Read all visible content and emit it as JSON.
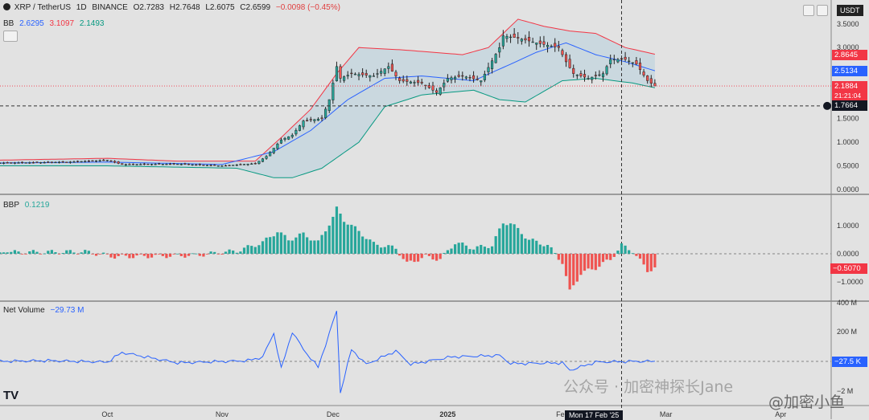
{
  "header": {
    "symbol": "XRP / TetherUS",
    "interval": "1D",
    "exchange": "BINANCE",
    "open": "O2.7283",
    "high": "H2.7648",
    "low": "L2.6075",
    "close": "C2.6599",
    "change": "−0.0098 (−0.45%)",
    "bb_label": "BB",
    "bb_basis": "2.6295",
    "bb_upper": "3.1097",
    "bb_lower": "2.1493",
    "currency": "USDT"
  },
  "price_axis": {
    "ticks": [
      "3.5000",
      "3.0000",
      "2.5000",
      "2.0000",
      "1.5000",
      "1.0000",
      "0.5000",
      "0.0000"
    ]
  },
  "price_tags": {
    "upper": "2.8645",
    "basis": "2.5134",
    "last": "2.1884",
    "countdown": "21:21:04",
    "cursor": "1.7664"
  },
  "bbp": {
    "label": "BBP",
    "value": "0.1219",
    "ticks": [
      "1.0000",
      "0.0000",
      "−1.0000"
    ],
    "tag": "−0.5070"
  },
  "net_volume": {
    "label": "Net Volume",
    "value": "−29.73 M",
    "ticks": [
      "400 M",
      "200 M",
      "−2 M"
    ],
    "tag": "−27.5 K"
  },
  "time_axis": {
    "labels": [
      "Oct",
      "Nov",
      "Dec",
      "2025",
      "Feb",
      "Mar",
      "Apr"
    ],
    "cursor": "Mon 17 Feb '25"
  },
  "watermarks": {
    "wechat": "公众号 · 加密神探长Jane",
    "brand": "@加密小鱼"
  },
  "colors": {
    "up": "#26a69a",
    "down": "#ef5350",
    "bb_upper": "#f23645",
    "bb_basis": "#2962ff",
    "bb_lower": "#089981",
    "volume": "#2962ff"
  },
  "chart_data": {
    "type": "candlestick",
    "panes": [
      {
        "name": "price",
        "ylim": [
          0,
          3.7
        ],
        "x_range": [
          "2024-09-02",
          "2025-04-14"
        ],
        "price_path": [
          [
            "2024-09-01",
            0.56
          ],
          [
            "2024-09-20",
            0.58
          ],
          [
            "2024-10-01",
            0.62
          ],
          [
            "2024-10-05",
            0.53
          ],
          [
            "2024-10-20",
            0.54
          ],
          [
            "2024-11-01",
            0.5
          ],
          [
            "2024-11-10",
            0.55
          ],
          [
            "2024-11-13",
            0.7
          ],
          [
            "2024-11-17",
            1.05
          ],
          [
            "2024-11-20",
            1.15
          ],
          [
            "2024-11-23",
            1.45
          ],
          [
            "2024-11-28",
            1.5
          ],
          [
            "2024-11-30",
            1.9
          ],
          [
            "2024-12-02",
            2.6
          ],
          [
            "2024-12-03",
            2.35
          ],
          [
            "2024-12-06",
            2.45
          ],
          [
            "2024-12-12",
            2.4
          ],
          [
            "2024-12-16",
            2.6
          ],
          [
            "2024-12-19",
            2.3
          ],
          [
            "2024-12-25",
            2.25
          ],
          [
            "2024-12-29",
            2.05
          ],
          [
            "2025-01-01",
            2.35
          ],
          [
            "2025-01-05",
            2.4
          ],
          [
            "2025-01-10",
            2.3
          ],
          [
            "2025-01-15",
            3.0
          ],
          [
            "2025-01-16",
            3.25
          ],
          [
            "2025-01-20",
            3.2
          ],
          [
            "2025-01-25",
            3.1
          ],
          [
            "2025-01-31",
            3.0
          ],
          [
            "2025-02-02",
            2.7
          ],
          [
            "2025-02-04",
            2.45
          ],
          [
            "2025-02-08",
            2.35
          ],
          [
            "2025-02-12",
            2.45
          ],
          [
            "2025-02-14",
            2.75
          ],
          [
            "2025-02-18",
            2.75
          ],
          [
            "2025-02-21",
            2.65
          ],
          [
            "2025-02-24",
            2.3
          ],
          [
            "2025-02-26",
            2.19
          ]
        ],
        "bb_upper": [
          [
            "2024-09-01",
            0.62
          ],
          [
            "2024-10-01",
            0.66
          ],
          [
            "2024-10-20",
            0.6
          ],
          [
            "2024-11-10",
            0.6
          ],
          [
            "2024-11-17",
            1.1
          ],
          [
            "2024-11-25",
            1.7
          ],
          [
            "2024-12-02",
            2.45
          ],
          [
            "2024-12-08",
            3.0
          ],
          [
            "2024-12-20",
            2.95
          ],
          [
            "2024-12-28",
            2.9
          ],
          [
            "2025-01-05",
            2.85
          ],
          [
            "2025-01-12",
            3.0
          ],
          [
            "2025-01-20",
            3.6
          ],
          [
            "2025-01-27",
            3.45
          ],
          [
            "2025-02-03",
            3.35
          ],
          [
            "2025-02-10",
            3.3
          ],
          [
            "2025-02-18",
            3.0
          ],
          [
            "2025-02-26",
            2.86
          ]
        ],
        "bb_basis": [
          [
            "2024-09-01",
            0.56
          ],
          [
            "2024-10-01",
            0.58
          ],
          [
            "2024-11-01",
            0.53
          ],
          [
            "2024-11-15",
            0.8
          ],
          [
            "2024-11-25",
            1.25
          ],
          [
            "2024-12-05",
            1.9
          ],
          [
            "2024-12-15",
            2.35
          ],
          [
            "2024-12-25",
            2.4
          ],
          [
            "2025-01-08",
            2.3
          ],
          [
            "2025-01-18",
            2.65
          ],
          [
            "2025-01-25",
            2.9
          ],
          [
            "2025-02-02",
            3.1
          ],
          [
            "2025-02-10",
            2.85
          ],
          [
            "2025-02-18",
            2.7
          ],
          [
            "2025-02-26",
            2.51
          ]
        ],
        "bb_lower": [
          [
            "2024-09-01",
            0.5
          ],
          [
            "2024-10-01",
            0.5
          ],
          [
            "2024-11-05",
            0.45
          ],
          [
            "2024-11-15",
            0.25
          ],
          [
            "2024-11-20",
            0.25
          ],
          [
            "2024-11-28",
            0.45
          ],
          [
            "2024-12-08",
            1.0
          ],
          [
            "2024-12-15",
            1.75
          ],
          [
            "2024-12-25",
            2.0
          ],
          [
            "2025-01-08",
            2.1
          ],
          [
            "2025-01-15",
            1.9
          ],
          [
            "2025-01-22",
            1.85
          ],
          [
            "2025-02-01",
            2.3
          ],
          [
            "2025-02-10",
            2.35
          ],
          [
            "2025-02-20",
            2.25
          ],
          [
            "2025-02-26",
            2.15
          ]
        ],
        "last": 2.1884,
        "cursor_price": 1.7664
      },
      {
        "name": "BBP",
        "ylim": [
          -1.5,
          1.6
        ],
        "bars": [
          [
            "2024-09-05",
            0.05
          ],
          [
            "2024-09-15",
            0.06
          ],
          [
            "2024-09-25",
            0.07
          ],
          [
            "2024-10-03",
            -0.1
          ],
          [
            "2024-10-15",
            -0.08
          ],
          [
            "2024-10-25",
            -0.05
          ],
          [
            "2024-11-05",
            0.1
          ],
          [
            "2024-11-12",
            0.4
          ],
          [
            "2024-11-16",
            0.8
          ],
          [
            "2024-11-19",
            0.5
          ],
          [
            "2024-11-23",
            0.7
          ],
          [
            "2024-11-27",
            0.4
          ],
          [
            "2024-12-01",
            1.3
          ],
          [
            "2024-12-02",
            1.6
          ],
          [
            "2024-12-04",
            1.2
          ],
          [
            "2024-12-08",
            0.8
          ],
          [
            "2024-12-12",
            0.35
          ],
          [
            "2024-12-18",
            0.2
          ],
          [
            "2024-12-21",
            -0.35
          ],
          [
            "2024-12-26",
            -0.1
          ],
          [
            "2024-12-30",
            -0.2
          ],
          [
            "2025-01-03",
            0.4
          ],
          [
            "2025-01-08",
            0.2
          ],
          [
            "2025-01-13",
            0.3
          ],
          [
            "2025-01-16",
            1.1
          ],
          [
            "2025-01-18",
            1.1
          ],
          [
            "2025-01-23",
            0.5
          ],
          [
            "2025-01-28",
            0.3
          ],
          [
            "2025-02-01",
            -0.3
          ],
          [
            "2025-02-03",
            -1.35
          ],
          [
            "2025-02-06",
            -0.7
          ],
          [
            "2025-02-10",
            -0.5
          ],
          [
            "2025-02-14",
            -0.2
          ],
          [
            "2025-02-17",
            0.3
          ],
          [
            "2025-02-20",
            0.1
          ],
          [
            "2025-02-24",
            -0.6
          ],
          [
            "2025-02-26",
            -0.5
          ]
        ]
      },
      {
        "name": "Net Volume",
        "ylim": [
          -60,
          420
        ],
        "series": [
          [
            "2024-09-01",
            0
          ],
          [
            "2024-09-15",
            5
          ],
          [
            "2024-10-01",
            -5
          ],
          [
            "2024-10-05",
            60
          ],
          [
            "2024-10-20",
            -10
          ],
          [
            "2024-11-08",
            5
          ],
          [
            "2024-11-12",
            30
          ],
          [
            "2024-11-15",
            190
          ],
          [
            "2024-11-17",
            -50
          ],
          [
            "2024-11-20",
            200
          ],
          [
            "2024-11-23",
            80
          ],
          [
            "2024-11-27",
            -40
          ],
          [
            "2024-12-02",
            340
          ],
          [
            "2024-12-03",
            -210
          ],
          [
            "2024-12-06",
            80
          ],
          [
            "2024-12-10",
            -20
          ],
          [
            "2024-12-18",
            70
          ],
          [
            "2024-12-22",
            -20
          ],
          [
            "2025-01-02",
            30
          ],
          [
            "2025-01-15",
            40
          ],
          [
            "2025-01-18",
            -15
          ],
          [
            "2025-02-01",
            -10
          ],
          [
            "2025-02-03",
            -60
          ],
          [
            "2025-02-10",
            -5
          ],
          [
            "2025-02-20",
            0
          ],
          [
            "2025-02-26",
            -0.0275
          ]
        ]
      }
    ]
  }
}
